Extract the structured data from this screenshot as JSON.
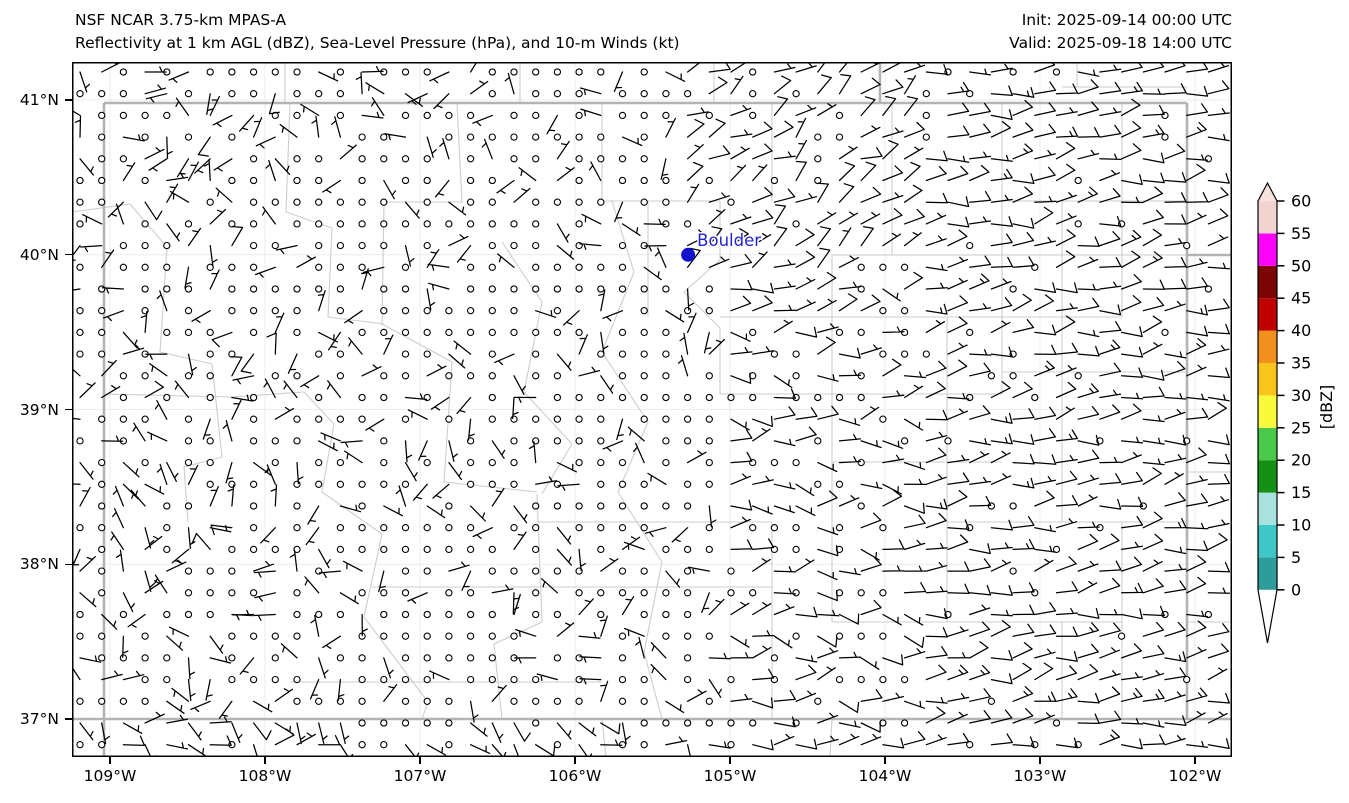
{
  "header": {
    "model_title": "NSF NCAR 3.75-km MPAS-A",
    "product_title": "Reflectivity at 1 km AGL (dBZ), Sea-Level Pressure (hPa), and 10-m Winds (kt)",
    "init_label": "Init: 2025-09-14 00:00 UTC",
    "valid_label": "Valid: 2025-09-18 14:00 UTC"
  },
  "chart_data": {
    "type": "map",
    "projection": "lat-lon",
    "extent": {
      "lon_min": -109.245,
      "lon_max": -101.761,
      "lat_min": 36.755,
      "lat_max": 41.2455
    },
    "x_ticks": [
      {
        "lon": -109,
        "label": "109°W"
      },
      {
        "lon": -108,
        "label": "108°W"
      },
      {
        "lon": -107,
        "label": "107°W"
      },
      {
        "lon": -106,
        "label": "106°W"
      },
      {
        "lon": -105,
        "label": "105°W"
      },
      {
        "lon": -104,
        "label": "104°W"
      },
      {
        "lon": -103,
        "label": "103°W"
      },
      {
        "lon": -102,
        "label": "102°W"
      }
    ],
    "y_ticks": [
      {
        "lat": 41,
        "label": "41°N"
      },
      {
        "lat": 40,
        "label": "40°N"
      },
      {
        "lat": 39,
        "label": "39°N"
      },
      {
        "lat": 38,
        "label": "38°N"
      },
      {
        "lat": 37,
        "label": "37°N"
      }
    ],
    "city_marker": {
      "name": "Boulder",
      "lon": -105.27,
      "lat": 40.0,
      "dot_color": "#1212cf",
      "label_color": "#2424cc"
    },
    "reflectivity_echoes": "none visible (clear air, no dBZ shading on map)",
    "slp_contours": "no labeled pressure contours visible in domain",
    "wind_field": {
      "units": "kt",
      "grid_spacing_px": 21.7,
      "seed": 42,
      "summary": "mostly calm/light variable winds over the mountains and valleys; organized 5-13 kt easterly to northeasterly flow over the eastern plains",
      "regions": [
        {
          "name": "eastern-plains",
          "fx_min": 0.72,
          "dir_from_deg": 80,
          "dir_jitter": 22,
          "speed_min": 5,
          "speed_max": 13,
          "calm_prob": 0.1
        },
        {
          "name": "northeast",
          "fx_min": 0.52,
          "fy_max": 0.32,
          "dir_from_deg": 55,
          "dir_jitter": 28,
          "speed_min": 4,
          "speed_max": 11,
          "calm_prob": 0.15
        },
        {
          "name": "east-mid",
          "fx_min": 0.55,
          "dir_from_deg": 90,
          "dir_jitter": 35,
          "speed_min": 3,
          "speed_max": 10,
          "calm_prob": 0.3
        },
        {
          "name": "south-edge",
          "fy_min": 0.92,
          "dir_from_deg": 115,
          "dir_jitter": 55,
          "speed_min": 3,
          "speed_max": 9,
          "calm_prob": 0.25
        },
        {
          "name": "central",
          "fx_min": 0.18,
          "fx_max": 0.55,
          "dir_from_deg": null,
          "dir_jitter": 180,
          "speed_min": 1,
          "speed_max": 7,
          "calm_prob": 0.55
        },
        {
          "name": "west",
          "fx_max": 0.18,
          "dir_from_deg": null,
          "dir_jitter": 180,
          "speed_min": 1,
          "speed_max": 8,
          "calm_prob": 0.35
        }
      ]
    },
    "colorbar": {
      "title": "[dBZ]",
      "tick_values": [
        0,
        5,
        10,
        15,
        20,
        25,
        30,
        35,
        40,
        45,
        50,
        55,
        60
      ],
      "segments": [
        {
          "min": 0,
          "max": 5,
          "color": "#2f9c9c"
        },
        {
          "min": 5,
          "max": 10,
          "color": "#3fc6c6"
        },
        {
          "min": 10,
          "max": 15,
          "color": "#a9e2dc"
        },
        {
          "min": 15,
          "max": 20,
          "color": "#149114"
        },
        {
          "min": 20,
          "max": 25,
          "color": "#4bc94b"
        },
        {
          "min": 25,
          "max": 30,
          "color": "#fafa3c"
        },
        {
          "min": 30,
          "max": 35,
          "color": "#f7c51c"
        },
        {
          "min": 35,
          "max": 40,
          "color": "#f2901e"
        },
        {
          "min": 40,
          "max": 45,
          "color": "#bf0000"
        },
        {
          "min": 45,
          "max": 50,
          "color": "#7c0404"
        },
        {
          "min": 50,
          "max": 55,
          "color": "#fb02fb"
        },
        {
          "min": 55,
          "max": 60,
          "color": "#f2d3cf"
        }
      ],
      "under_color": "#ffffff",
      "over_color": "#f7e2df"
    },
    "boundaries": {
      "graticule_color": "#ececec",
      "county_color": "#cdcdcd",
      "state_color": "#b3b3b3",
      "state_lines": [
        [
          [
            32,
            41
          ],
          [
            1115,
            41
          ]
        ],
        [
          [
            0,
            657
          ],
          [
            1160,
            657
          ]
        ],
        [
          [
            32,
            41
          ],
          [
            32,
            695
          ]
        ],
        [
          [
            1115,
            41
          ],
          [
            1115,
            657
          ]
        ],
        [
          [
            808,
            0
          ],
          [
            808,
            41
          ]
        ],
        [
          [
            1115,
            193
          ],
          [
            1160,
            193
          ]
        ]
      ],
      "county_lines": [
        [
          [
            0,
            150
          ],
          [
            58,
            142
          ],
          [
            95,
            185
          ],
          [
            88,
            290
          ],
          [
            140,
            302
          ],
          [
            150,
            395
          ],
          [
            112,
            405
          ],
          [
            116,
            460
          ]
        ],
        [
          [
            32,
            332
          ],
          [
            160,
            335
          ]
        ],
        [
          [
            160,
            335
          ],
          [
            232,
            330
          ],
          [
            262,
            362
          ],
          [
            250,
            430
          ],
          [
            310,
            472
          ],
          [
            292,
            555
          ],
          [
            356,
            640
          ],
          [
            350,
            657
          ]
        ],
        [
          [
            218,
            41
          ],
          [
            214,
            150
          ],
          [
            260,
            166
          ],
          [
            256,
            255
          ],
          [
            312,
            262
          ]
        ],
        [
          [
            312,
            140
          ],
          [
            310,
            262
          ],
          [
            380,
            300
          ],
          [
            372,
            420
          ],
          [
            465,
            430
          ]
        ],
        [
          [
            385,
            41
          ],
          [
            390,
            140
          ],
          [
            312,
            140
          ]
        ],
        [
          [
            430,
            180
          ],
          [
            470,
            240
          ],
          [
            452,
            330
          ],
          [
            500,
            382
          ],
          [
            470,
            432
          ]
        ],
        [
          [
            465,
            432
          ],
          [
            470,
            560
          ],
          [
            422,
            582
          ],
          [
            430,
            657
          ]
        ],
        [
          [
            540,
            139
          ],
          [
            562,
            210
          ],
          [
            530,
            290
          ],
          [
            576,
            360
          ],
          [
            546,
            430
          ],
          [
            590,
            500
          ],
          [
            572,
            590
          ],
          [
            590,
            657
          ]
        ],
        [
          [
            530,
            41
          ],
          [
            530,
            139
          ],
          [
            648,
            139
          ]
        ],
        [
          [
            648,
            139
          ],
          [
            648,
            198
          ],
          [
            612,
            230
          ],
          [
            648,
            266
          ],
          [
            648,
            332
          ]
        ],
        [
          [
            700,
            41
          ],
          [
            700,
            139
          ]
        ],
        [
          [
            576,
            139
          ],
          [
            576,
            255
          ]
        ],
        [
          [
            648,
            255
          ],
          [
            1050,
            255
          ]
        ],
        [
          [
            760,
            193
          ],
          [
            1115,
            193
          ]
        ],
        [
          [
            648,
            332
          ],
          [
            930,
            332
          ]
        ],
        [
          [
            930,
            310
          ],
          [
            1115,
            310
          ]
        ],
        [
          [
            760,
            400
          ],
          [
            930,
            400
          ]
        ],
        [
          [
            875,
            460
          ],
          [
            1115,
            460
          ]
        ],
        [
          [
            465,
            460
          ],
          [
            700,
            460
          ]
        ],
        [
          [
            300,
            525
          ],
          [
            700,
            525
          ]
        ],
        [
          [
            760,
            560
          ],
          [
            1050,
            560
          ]
        ],
        [
          [
            218,
            620
          ],
          [
            530,
            620
          ]
        ],
        [
          [
            700,
            460
          ],
          [
            700,
            657
          ]
        ],
        [
          [
            760,
            193
          ],
          [
            760,
            560
          ]
        ],
        [
          [
            820,
            41
          ],
          [
            820,
            193
          ]
        ],
        [
          [
            875,
            255
          ],
          [
            875,
            560
          ]
        ],
        [
          [
            930,
            41
          ],
          [
            930,
            332
          ]
        ],
        [
          [
            990,
            139
          ],
          [
            990,
            460
          ]
        ],
        [
          [
            1050,
            41
          ],
          [
            1050,
            255
          ]
        ],
        [
          [
            1050,
            460
          ],
          [
            1050,
            657
          ]
        ],
        [
          [
            990,
            560
          ],
          [
            990,
            657
          ]
        ],
        [
          [
            930,
            139
          ],
          [
            1115,
            139
          ]
        ],
        [
          [
            1115,
            560
          ],
          [
            1160,
            560
          ]
        ],
        [
          [
            1115,
            410
          ],
          [
            1160,
            410
          ]
        ],
        [
          [
            213,
            0
          ],
          [
            213,
            41
          ]
        ],
        [
          [
            448,
            0
          ],
          [
            448,
            41
          ]
        ],
        [
          [
            642,
            0
          ],
          [
            642,
            41
          ]
        ],
        [
          [
            990,
            25
          ],
          [
            1115,
            25
          ]
        ],
        [
          [
            1005,
            0
          ],
          [
            1005,
            25
          ]
        ],
        [
          [
            530,
            657
          ],
          [
            534,
            695
          ]
        ],
        [
          [
            760,
            657
          ],
          [
            758,
            695
          ]
        ]
      ]
    }
  }
}
